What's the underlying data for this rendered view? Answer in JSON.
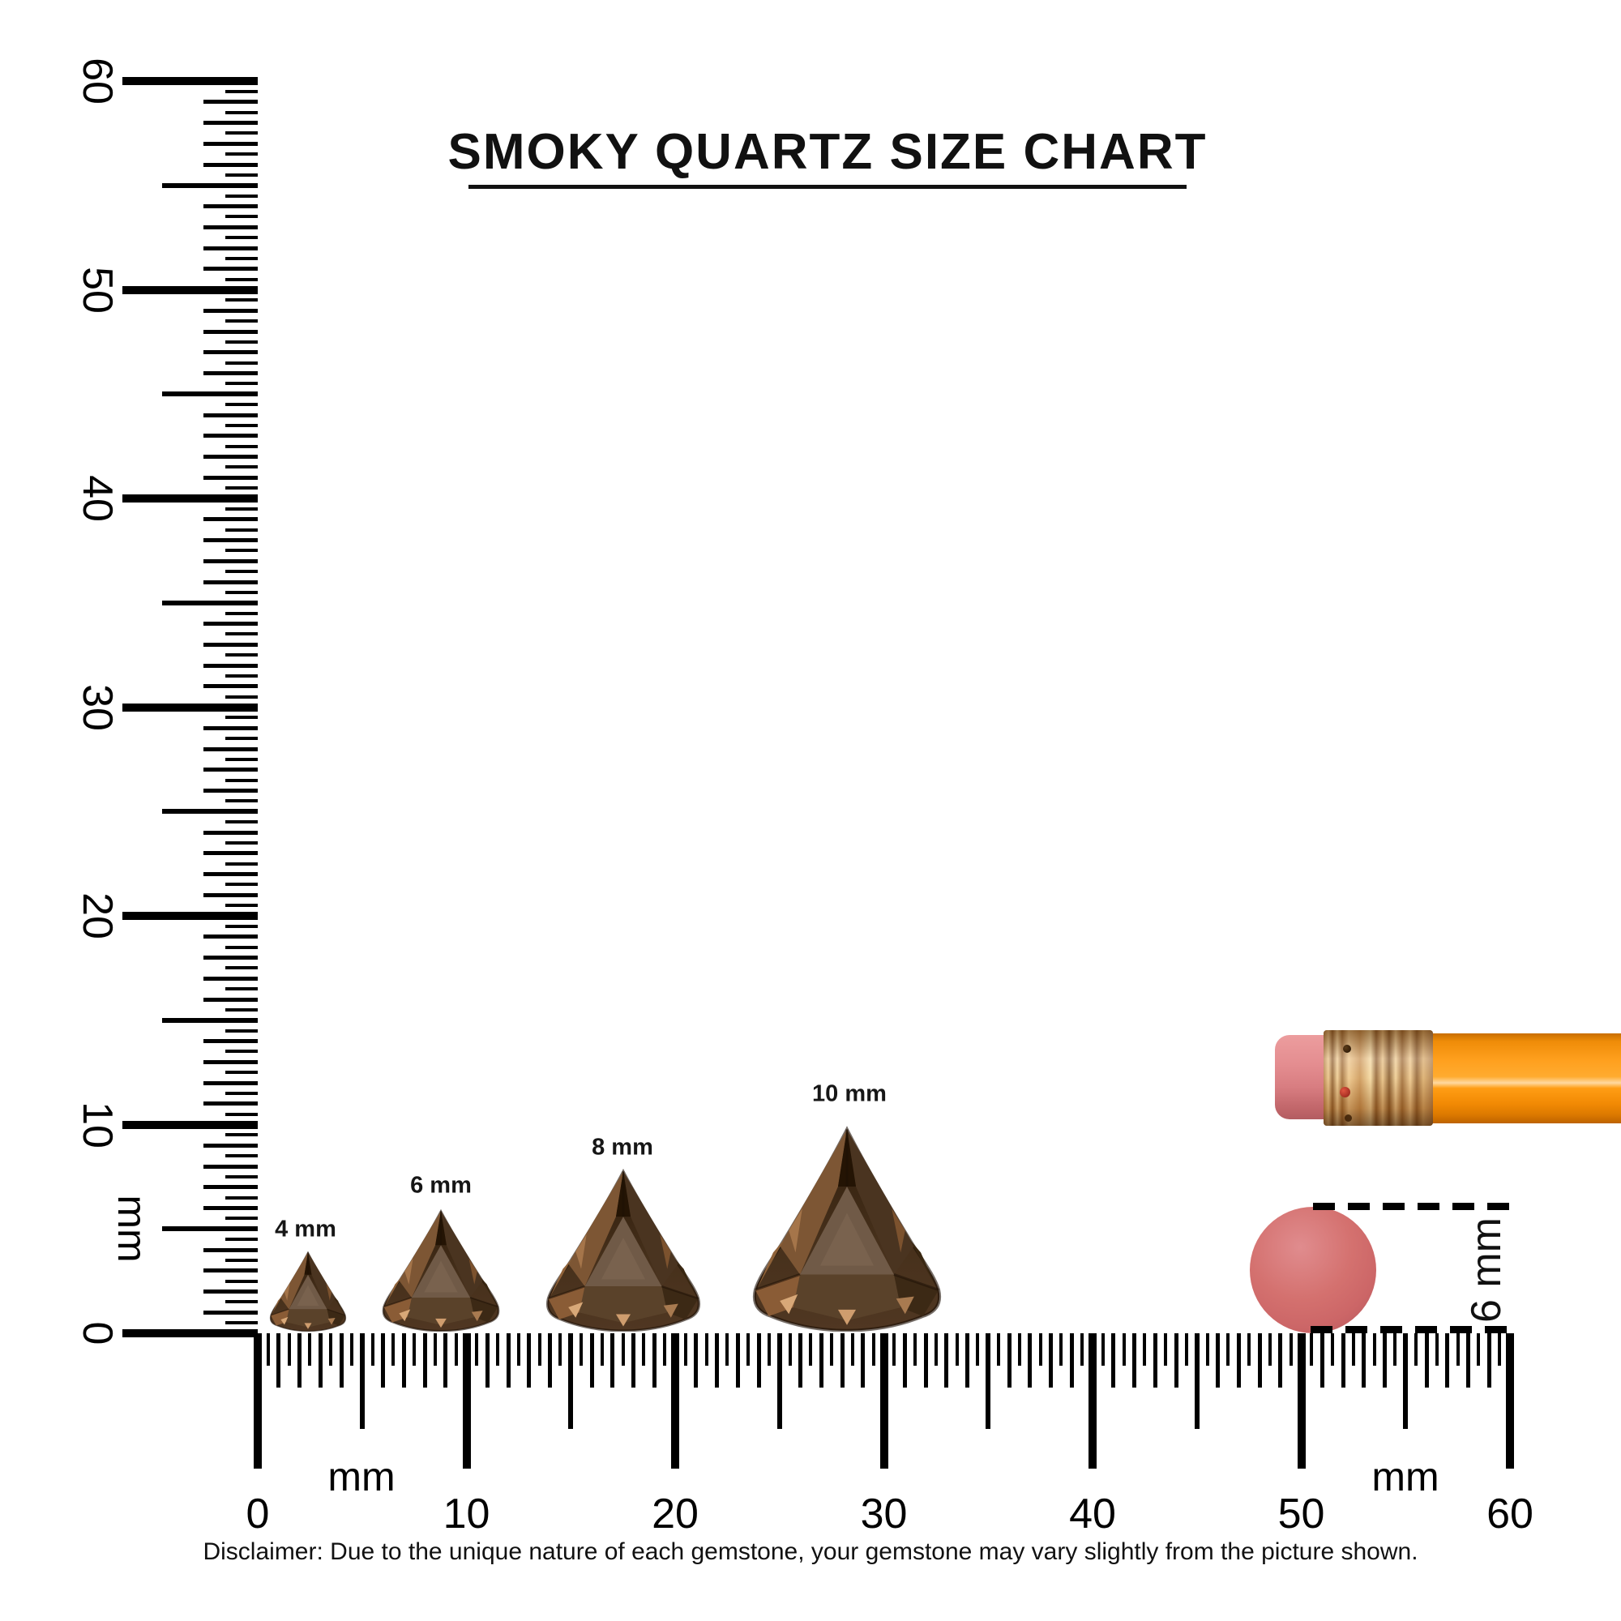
{
  "title": "SMOKY QUARTZ SIZE CHART",
  "disclaimer": "Disclaimer: Due to the unique nature of each gemstone, your gemstone may vary slightly from the picture shown.",
  "chart_data": {
    "type": "size-comparison-chart",
    "subject": "smoky quartz trillion-cut gemstones",
    "unit": "mm",
    "items": [
      {
        "label": "4 mm",
        "size_mm": 4
      },
      {
        "label": "6 mm",
        "size_mm": 6
      },
      {
        "label": "8 mm",
        "size_mm": 8
      },
      {
        "label": "10 mm",
        "size_mm": 10
      }
    ],
    "rulers": {
      "vertical": {
        "min": 0,
        "max": 60,
        "major_step_mm": 10,
        "minor_step_mm": 0.5,
        "tick_labels": [
          "0",
          "10",
          "20",
          "30",
          "40",
          "50",
          "60"
        ],
        "unit_label": "mm"
      },
      "horizontal": {
        "min": 0,
        "max": 60,
        "major_step_mm": 10,
        "minor_step_mm": 0.5,
        "tick_labels": [
          "0",
          "10",
          "20",
          "30",
          "40",
          "50",
          "60"
        ],
        "unit_labels": [
          "mm",
          "mm"
        ]
      }
    },
    "reference_objects": [
      {
        "name": "pencil-with-eraser",
        "parts": [
          "pink eraser tip",
          "metal ferrule",
          "orange body"
        ]
      },
      {
        "name": "eraser-top-view-circle",
        "diameter_label": "6 mm"
      }
    ]
  },
  "annotation": {
    "eraser_diameter_label": "6 mm"
  },
  "colors": {
    "background": "#ffffff",
    "ink": "#000000",
    "gem_dark": "#2f1d0c",
    "gem_body": "#503722",
    "gem_table": "#705a47",
    "gem_highlight": "#d8a878",
    "pencil_orange": "#ffa01e",
    "ferrule_gold": "#e9c185",
    "eraser_pink": "#d4716f"
  }
}
